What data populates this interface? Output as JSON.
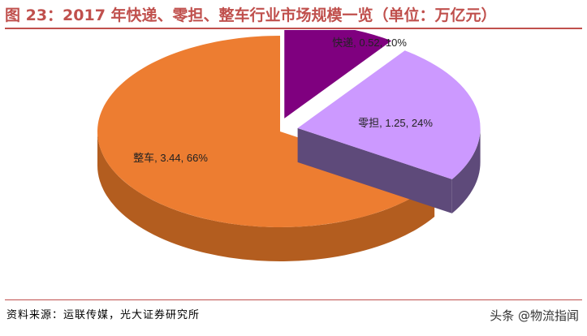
{
  "title": "图 23：2017 年快递、零担、整车行业市场规模一览（单位：万亿元）",
  "source": "资料来源：运联传媒，光大证券研究所",
  "watermark": "头条 @物流指闻",
  "colors": {
    "title": "#c0504d",
    "rule": "#c0504d"
  },
  "chart_data": {
    "type": "pie",
    "style": "3d-exploded",
    "slices": [
      {
        "name": "快递",
        "value": 0.52,
        "percent": 10,
        "label": "快递, 0.52, 10%",
        "color": "#7f007f",
        "side_color": "#4d004d"
      },
      {
        "name": "零担",
        "value": 1.25,
        "percent": 24,
        "label": "零担, 1.25, 24%",
        "color": "#cc99ff",
        "side_color": "#5e4a7a"
      },
      {
        "name": "整车",
        "value": 3.44,
        "percent": 66,
        "label": "整车, 3.44, 66%",
        "color": "#ed7d31",
        "side_color": "#b35d1f"
      }
    ]
  }
}
